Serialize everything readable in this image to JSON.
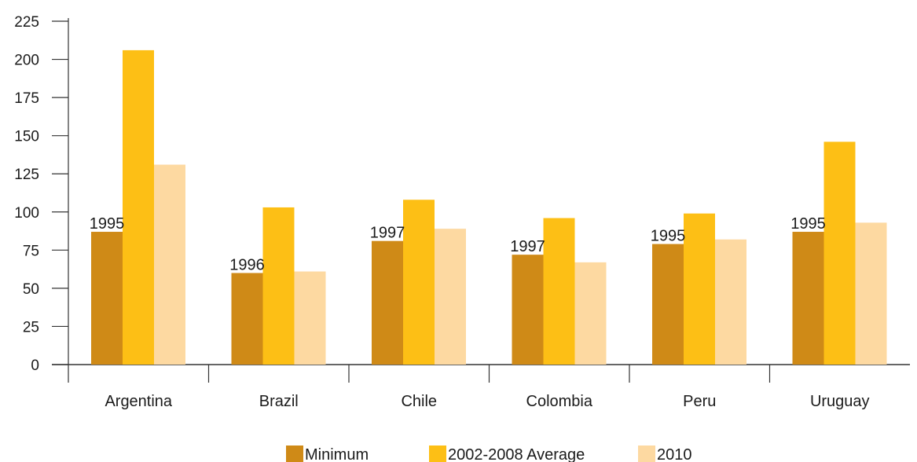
{
  "chart_data": {
    "type": "bar",
    "categories": [
      "Argentina",
      "Brazil",
      "Chile",
      "Colombia",
      "Peru",
      "Uruguay"
    ],
    "series": [
      {
        "name": "Minimum",
        "color": "#cf8a17",
        "values": [
          87,
          60,
          81,
          72,
          79,
          87
        ]
      },
      {
        "name": "2002-2008 Average",
        "color": "#fdbf15",
        "values": [
          206,
          103,
          108,
          96,
          99,
          146
        ]
      },
      {
        "name": "2010",
        "color": "#fdd9a1",
        "values": [
          131,
          61,
          89,
          67,
          82,
          93
        ]
      }
    ],
    "annotations": [
      "1995",
      "1996",
      "1997",
      "1997",
      "1995",
      "1995"
    ],
    "yticks": [
      0,
      25,
      50,
      75,
      100,
      125,
      150,
      175,
      200,
      225
    ],
    "ylim": [
      0,
      225
    ],
    "legend_position": "bottom",
    "grid": false
  }
}
